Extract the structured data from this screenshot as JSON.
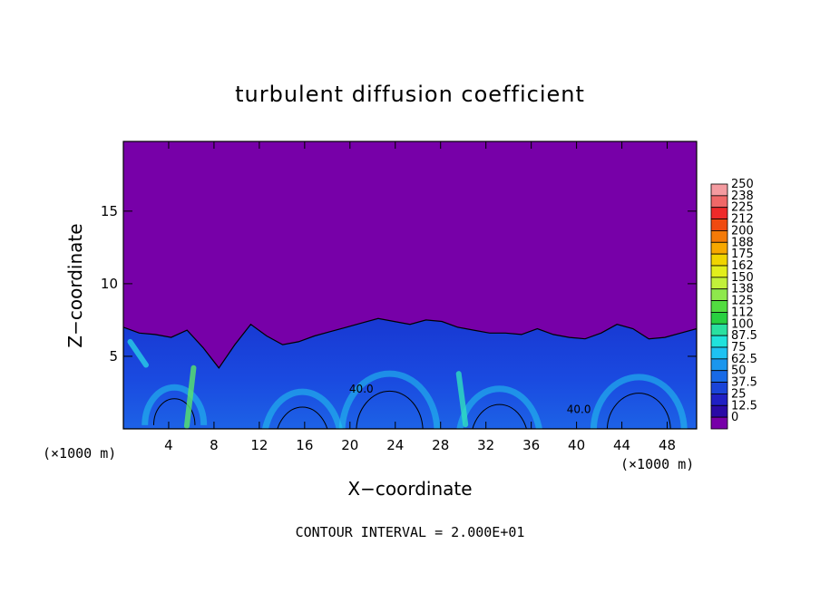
{
  "chart_data": {
    "type": "heatmap",
    "title": "turbulent diffusion coefficient",
    "xlabel": "X−coordinate",
    "ylabel": "Z−coordinate",
    "x_unit": "(×1000 m)",
    "z_unit": "(×1000 m)",
    "footer": "CONTOUR INTERVAL = 2.000E+01",
    "xlim": [
      0,
      50.6
    ],
    "ylim": [
      0,
      19.8
    ],
    "x_ticks": [
      "4",
      "8",
      "12",
      "16",
      "20",
      "24",
      "28",
      "32",
      "36",
      "40",
      "44",
      "48"
    ],
    "x_tick_values": [
      4,
      8,
      12,
      16,
      20,
      24,
      28,
      32,
      36,
      40,
      44,
      48
    ],
    "y_ticks": [
      "5",
      "10",
      "15"
    ],
    "y_tick_values": [
      5,
      10,
      15
    ],
    "contour_labels": [
      {
        "text": "40.0",
        "x": 21.0,
        "z": 2.5
      },
      {
        "text": "40.0",
        "x": 40.2,
        "z": 1.1
      }
    ],
    "colorbar": {
      "labels": [
        "250",
        "238",
        "225",
        "212",
        "200",
        "188",
        "175",
        "162",
        "150",
        "138",
        "125",
        "112",
        "100",
        "87.5",
        "75",
        "62.5",
        "50",
        "37.5",
        "25",
        "12.5",
        "0"
      ],
      "colors": [
        "#f49ba0",
        "#f06868",
        "#ef2a2a",
        "#f04a10",
        "#f47a08",
        "#f7a800",
        "#f0d400",
        "#e2ee1c",
        "#c2f03a",
        "#8ee84c",
        "#52dc40",
        "#28d040",
        "#2ae0a0",
        "#20e2dc",
        "#1ec2f2",
        "#1a96ee",
        "#186ae6",
        "#1a44d8",
        "#2020c4",
        "#2a0aa6",
        "#7700a8"
      ]
    },
    "background_value_color": "#7700a8",
    "turbulent_layer_top_z": [
      7.0,
      6.6,
      6.5,
      6.3,
      6.8,
      5.6,
      4.2,
      5.8,
      7.2,
      6.4,
      5.8,
      6.0,
      6.4,
      6.7,
      7.0,
      7.3,
      7.6,
      7.4,
      7.2,
      7.5,
      7.4,
      7.0,
      6.8,
      6.6,
      6.6,
      6.5,
      6.9,
      6.5,
      6.3,
      6.2,
      6.6,
      7.2,
      6.9,
      6.2,
      6.3,
      6.6,
      6.9
    ]
  }
}
